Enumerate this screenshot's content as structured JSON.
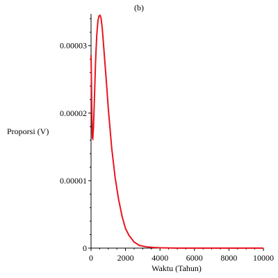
{
  "chart_data": {
    "type": "line",
    "panel_label": "(b)",
    "xlabel": "Waktu (Tahun)",
    "ylabel": "Proporsi (V)",
    "xlim": [
      0,
      10000
    ],
    "ylim": [
      0,
      3.45e-05
    ],
    "x_ticks": [
      0,
      2000,
      4000,
      6000,
      8000,
      10000
    ],
    "x_tick_labels": [
      "0",
      "2000",
      "4000",
      "6000",
      "8000",
      "10000"
    ],
    "y_ticks": [
      0,
      1e-05,
      2e-05,
      3e-05
    ],
    "y_tick_labels": [
      "0",
      "0.00001",
      "0.00002",
      "0.00003"
    ],
    "grid": false,
    "legend": "none",
    "series": [
      {
        "color": "#e8141e",
        "points": [
          [
            0,
            2.86e-05
          ],
          [
            25,
            2.45e-05
          ],
          [
            50,
            1.95e-05
          ],
          [
            75,
            1.63e-05
          ],
          [
            100,
            1.62e-05
          ],
          [
            140,
            1.78e-05
          ],
          [
            200,
            2.25e-05
          ],
          [
            260,
            2.75e-05
          ],
          [
            330,
            3.15e-05
          ],
          [
            400,
            3.37e-05
          ],
          [
            460,
            3.44e-05
          ],
          [
            520,
            3.45e-05
          ],
          [
            580,
            3.41e-05
          ],
          [
            650,
            3.26e-05
          ],
          [
            750,
            2.93e-05
          ],
          [
            900,
            2.43e-05
          ],
          [
            1000,
            2.07e-05
          ],
          [
            1200,
            1.48e-05
          ],
          [
            1400,
            1.04e-05
          ],
          [
            1600,
            7.2e-06
          ],
          [
            1800,
            4.7e-06
          ],
          [
            2000,
            2.9e-06
          ],
          [
            2200,
            1.9e-06
          ],
          [
            2500,
            9e-07
          ],
          [
            2800,
            4e-07
          ],
          [
            3200,
            2e-07
          ],
          [
            3600,
            1e-07
          ],
          [
            4000,
            5e-08
          ],
          [
            5000,
            0.0
          ],
          [
            6000,
            0.0
          ],
          [
            8000,
            0.0
          ],
          [
            10000,
            0.0
          ]
        ]
      }
    ]
  }
}
